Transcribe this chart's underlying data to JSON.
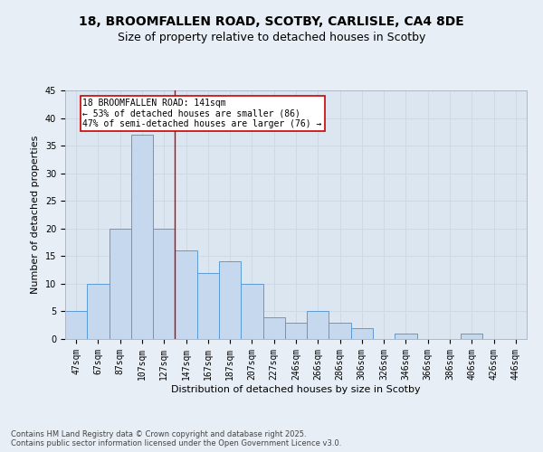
{
  "title_line1": "18, BROOMFALLEN ROAD, SCOTBY, CARLISLE, CA4 8DE",
  "title_line2": "Size of property relative to detached houses in Scotby",
  "xlabel": "Distribution of detached houses by size in Scotby",
  "ylabel": "Number of detached properties",
  "categories": [
    "47sqm",
    "67sqm",
    "87sqm",
    "107sqm",
    "127sqm",
    "147sqm",
    "167sqm",
    "187sqm",
    "207sqm",
    "227sqm",
    "246sqm",
    "266sqm",
    "286sqm",
    "306sqm",
    "326sqm",
    "346sqm",
    "366sqm",
    "386sqm",
    "406sqm",
    "426sqm",
    "446sqm"
  ],
  "values": [
    5,
    10,
    20,
    37,
    20,
    16,
    12,
    14,
    10,
    4,
    3,
    5,
    3,
    2,
    0,
    1,
    0,
    0,
    1,
    0,
    0
  ],
  "bar_color": "#c5d8ed",
  "bar_edge_color": "#5b9bd5",
  "grid_color": "#d0d8e4",
  "background_color": "#dce6f1",
  "fig_background_color": "#e8eef5",
  "annotation_text": "18 BROOMFALLEN ROAD: 141sqm\n← 53% of detached houses are smaller (86)\n47% of semi-detached houses are larger (76) →",
  "annotation_box_color": "#ffffff",
  "annotation_box_edge": "#cc0000",
  "red_line_x": 4.5,
  "ylim": [
    0,
    45
  ],
  "yticks": [
    0,
    5,
    10,
    15,
    20,
    25,
    30,
    35,
    40,
    45
  ],
  "footnote": "Contains HM Land Registry data © Crown copyright and database right 2025.\nContains public sector information licensed under the Open Government Licence v3.0.",
  "title_fontsize": 10,
  "subtitle_fontsize": 9,
  "axis_label_fontsize": 8,
  "tick_fontsize": 7,
  "annotation_fontsize": 7,
  "footnote_fontsize": 6
}
